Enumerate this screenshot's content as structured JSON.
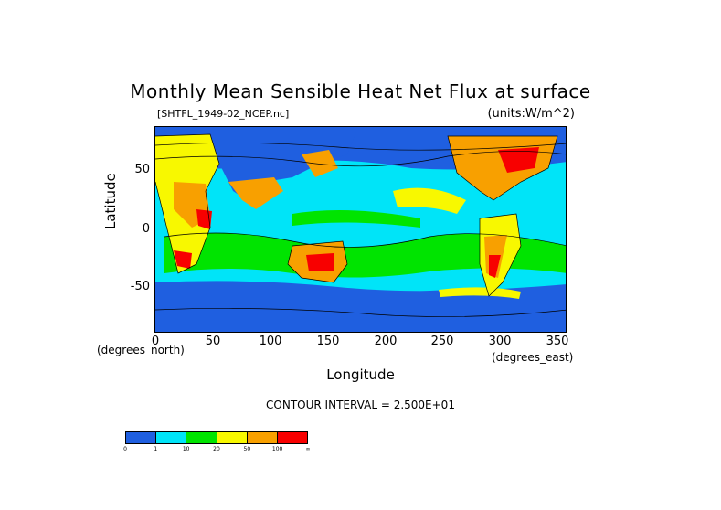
{
  "chart_data": {
    "type": "heatmap",
    "title": "Monthly Mean Sensible Heat Net Flux at surface",
    "file_label": "[SHTFL_1949-02_NCEP.nc]",
    "units_label": "(units:W/m^2)",
    "xlabel": "Longitude",
    "ylabel": "Latitude",
    "x_unit_note": "(degrees_east)",
    "y_unit_note": "(degrees_north)",
    "xlim": [
      0,
      360
    ],
    "ylim": [
      -90,
      90
    ],
    "x_ticks": [
      "0",
      "50",
      "100",
      "150",
      "200",
      "250",
      "300",
      "350"
    ],
    "y_ticks": [
      "50",
      "0",
      "-50"
    ],
    "contour_interval": "CONTOUR INTERVAL = 2.500E+01",
    "colorbar": {
      "colors": [
        "#1f5fe0",
        "#00e4f8",
        "#00e400",
        "#f8f800",
        "#f8a000",
        "#f80000"
      ],
      "labels": [
        "0",
        "1",
        "10",
        "20",
        "50",
        "100",
        "∞"
      ]
    }
  }
}
